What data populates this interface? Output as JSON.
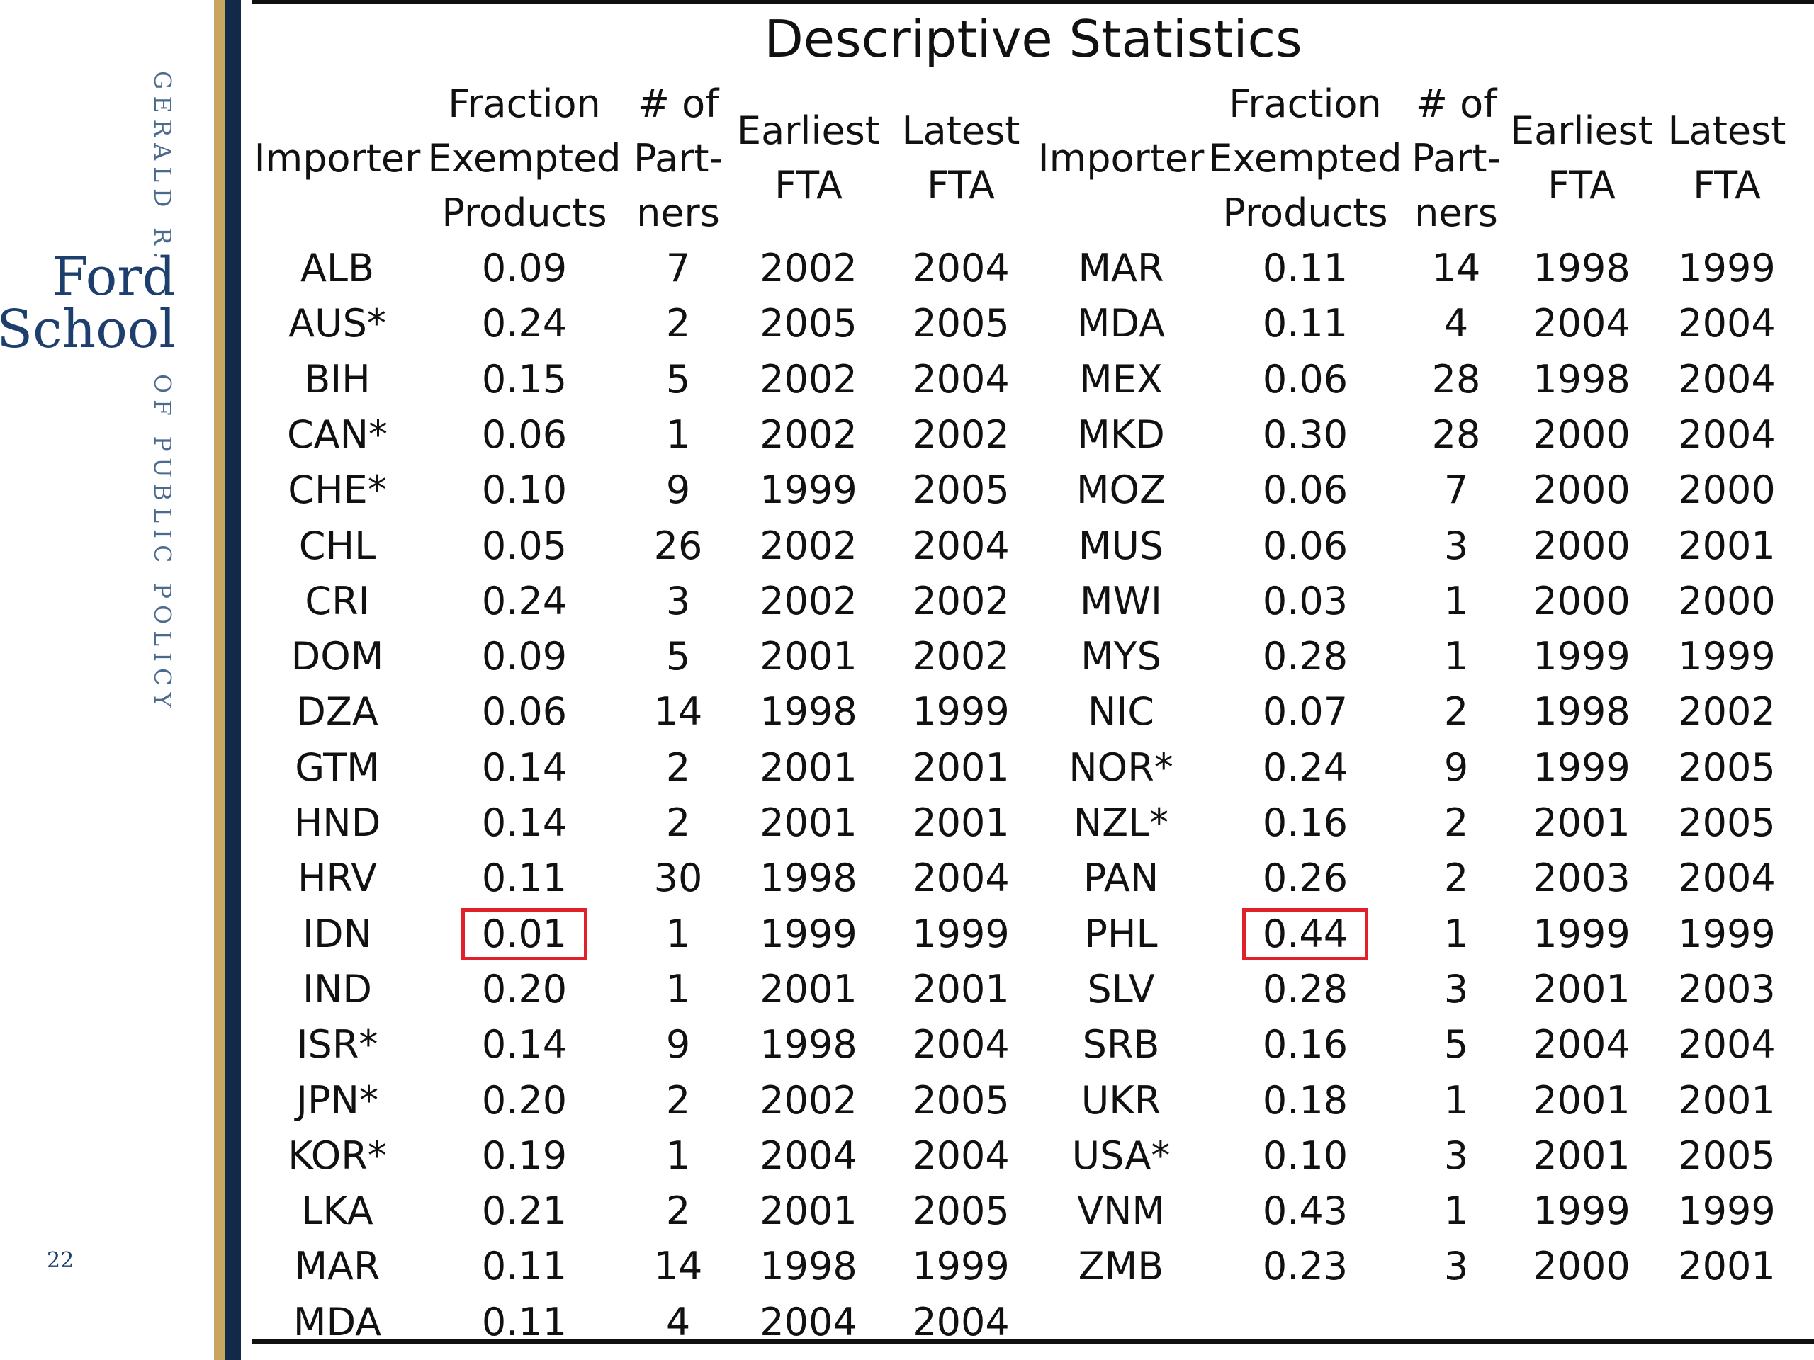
{
  "sidebar": {
    "brand_top": "GERALD R.",
    "brand_line1": "Ford",
    "brand_line2": "School",
    "brand_bottom": "OF PUBLIC POLICY",
    "slide_number": "22"
  },
  "title": "Descriptive Statistics",
  "columns": [
    [
      "Importer"
    ],
    [
      "Fraction",
      "Exempted",
      "Products"
    ],
    [
      "# of",
      "Part-",
      "ners"
    ],
    [
      "Earliest",
      "FTA"
    ],
    [
      "Latest",
      "FTA"
    ]
  ],
  "left_rows": [
    [
      "ALB",
      "0.09",
      "7",
      "2002",
      "2004"
    ],
    [
      "AUS*",
      "0.24",
      "2",
      "2005",
      "2005"
    ],
    [
      "BIH",
      "0.15",
      "5",
      "2002",
      "2004"
    ],
    [
      "CAN*",
      "0.06",
      "1",
      "2002",
      "2002"
    ],
    [
      "CHE*",
      "0.10",
      "9",
      "1999",
      "2005"
    ],
    [
      "CHL",
      "0.05",
      "26",
      "2002",
      "2004"
    ],
    [
      "CRI",
      "0.24",
      "3",
      "2002",
      "2002"
    ],
    [
      "DOM",
      "0.09",
      "5",
      "2001",
      "2002"
    ],
    [
      "DZA",
      "0.06",
      "14",
      "1998",
      "1999"
    ],
    [
      "GTM",
      "0.14",
      "2",
      "2001",
      "2001"
    ],
    [
      "HND",
      "0.14",
      "2",
      "2001",
      "2001"
    ],
    [
      "HRV",
      "0.11",
      "30",
      "1998",
      "2004"
    ],
    [
      "IDN",
      "0.01",
      "1",
      "1999",
      "1999"
    ],
    [
      "IND",
      "0.20",
      "1",
      "2001",
      "2001"
    ],
    [
      "ISR*",
      "0.14",
      "9",
      "1998",
      "2004"
    ],
    [
      "JPN*",
      "0.20",
      "2",
      "2002",
      "2005"
    ],
    [
      "KOR*",
      "0.19",
      "1",
      "2004",
      "2004"
    ],
    [
      "LKA",
      "0.21",
      "2",
      "2001",
      "2005"
    ],
    [
      "MAR",
      "0.11",
      "14",
      "1998",
      "1999"
    ],
    [
      "MDA",
      "0.11",
      "4",
      "2004",
      "2004"
    ]
  ],
  "right_rows": [
    [
      "MAR",
      "0.11",
      "14",
      "1998",
      "1999"
    ],
    [
      "MDA",
      "0.11",
      "4",
      "2004",
      "2004"
    ],
    [
      "MEX",
      "0.06",
      "28",
      "1998",
      "2004"
    ],
    [
      "MKD",
      "0.30",
      "28",
      "2000",
      "2004"
    ],
    [
      "MOZ",
      "0.06",
      "7",
      "2000",
      "2000"
    ],
    [
      "MUS",
      "0.06",
      "3",
      "2000",
      "2001"
    ],
    [
      "MWI",
      "0.03",
      "1",
      "2000",
      "2000"
    ],
    [
      "MYS",
      "0.28",
      "1",
      "1999",
      "1999"
    ],
    [
      "NIC",
      "0.07",
      "2",
      "1998",
      "2002"
    ],
    [
      "NOR*",
      "0.24",
      "9",
      "1999",
      "2005"
    ],
    [
      "NZL*",
      "0.16",
      "2",
      "2001",
      "2005"
    ],
    [
      "PAN",
      "0.26",
      "2",
      "2003",
      "2004"
    ],
    [
      "PHL",
      "0.44",
      "1",
      "1999",
      "1999"
    ],
    [
      "SLV",
      "0.28",
      "3",
      "2001",
      "2003"
    ],
    [
      "SRB",
      "0.16",
      "5",
      "2004",
      "2004"
    ],
    [
      "UKR",
      "0.18",
      "1",
      "2001",
      "2001"
    ],
    [
      "USA*",
      "0.10",
      "3",
      "2001",
      "2005"
    ],
    [
      "VNM",
      "0.43",
      "1",
      "1999",
      "1999"
    ],
    [
      "ZMB",
      "0.23",
      "3",
      "2000",
      "2001"
    ]
  ],
  "highlights": [
    {
      "table": "left",
      "row": 12,
      "col": 1
    },
    {
      "table": "right",
      "row": 12,
      "col": 1
    }
  ],
  "colors": {
    "highlight": "#e0202a",
    "navy": "#12294a",
    "gold": "#c8a560",
    "brand_text": "#1d3f6e"
  }
}
